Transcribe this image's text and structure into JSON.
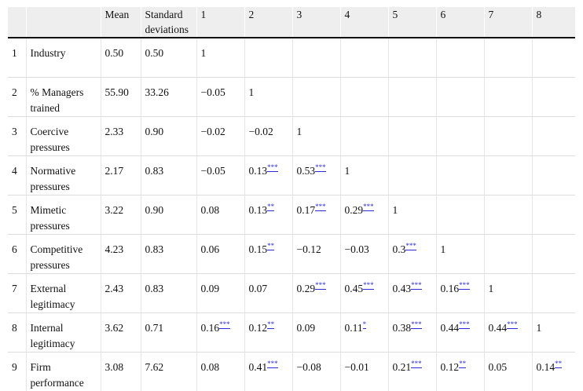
{
  "header": {
    "cols": [
      "",
      "",
      "Mean",
      "Standard deviations",
      "1",
      "2",
      "3",
      "4",
      "5",
      "6",
      "7",
      "8"
    ]
  },
  "rows": [
    {
      "num": "1",
      "label": "Industry",
      "mean": "0.50",
      "sd": "0.50",
      "cells": [
        {
          "v": "1",
          "s": ""
        },
        {
          "v": "",
          "s": ""
        },
        {
          "v": "",
          "s": ""
        },
        {
          "v": "",
          "s": ""
        },
        {
          "v": "",
          "s": ""
        },
        {
          "v": "",
          "s": ""
        },
        {
          "v": "",
          "s": ""
        },
        {
          "v": "",
          "s": ""
        }
      ]
    },
    {
      "num": "2",
      "label": "% Managers trained",
      "mean": "55.90",
      "sd": "33.26",
      "cells": [
        {
          "v": "−0.05",
          "s": ""
        },
        {
          "v": "1",
          "s": ""
        },
        {
          "v": "",
          "s": ""
        },
        {
          "v": "",
          "s": ""
        },
        {
          "v": "",
          "s": ""
        },
        {
          "v": "",
          "s": ""
        },
        {
          "v": "",
          "s": ""
        },
        {
          "v": "",
          "s": ""
        }
      ]
    },
    {
      "num": "3",
      "label": "Coercive pressures",
      "mean": "2.33",
      "sd": "0.90",
      "cells": [
        {
          "v": "−0.02",
          "s": ""
        },
        {
          "v": "−0.02",
          "s": ""
        },
        {
          "v": "1",
          "s": ""
        },
        {
          "v": "",
          "s": ""
        },
        {
          "v": "",
          "s": ""
        },
        {
          "v": "",
          "s": ""
        },
        {
          "v": "",
          "s": ""
        },
        {
          "v": "",
          "s": ""
        }
      ]
    },
    {
      "num": "4",
      "label": "Normative pressures",
      "mean": "2.17",
      "sd": "0.83",
      "cells": [
        {
          "v": "−0.05",
          "s": ""
        },
        {
          "v": "0.13",
          "s": "***"
        },
        {
          "v": "0.53",
          "s": "***"
        },
        {
          "v": "1",
          "s": ""
        },
        {
          "v": "",
          "s": ""
        },
        {
          "v": "",
          "s": ""
        },
        {
          "v": "",
          "s": ""
        },
        {
          "v": "",
          "s": ""
        }
      ]
    },
    {
      "num": "5",
      "label": "Mimetic pressures",
      "mean": "3.22",
      "sd": "0.90",
      "cells": [
        {
          "v": "0.08",
          "s": ""
        },
        {
          "v": "0.13",
          "s": "**"
        },
        {
          "v": "0.17",
          "s": "***"
        },
        {
          "v": "0.29",
          "s": "***"
        },
        {
          "v": "1",
          "s": ""
        },
        {
          "v": "",
          "s": ""
        },
        {
          "v": "",
          "s": ""
        },
        {
          "v": "",
          "s": ""
        }
      ]
    },
    {
      "num": "6",
      "label": "Competitive pressures",
      "mean": "4.23",
      "sd": "0.83",
      "cells": [
        {
          "v": "0.06",
          "s": ""
        },
        {
          "v": "0.15",
          "s": "**"
        },
        {
          "v": "−0.12",
          "s": ""
        },
        {
          "v": "−0.03",
          "s": ""
        },
        {
          "v": "0.3",
          "s": "***"
        },
        {
          "v": "1",
          "s": ""
        },
        {
          "v": "",
          "s": ""
        },
        {
          "v": "",
          "s": ""
        }
      ]
    },
    {
      "num": "7",
      "label": "External legitimacy",
      "mean": "2.43",
      "sd": "0.83",
      "cells": [
        {
          "v": "0.09",
          "s": ""
        },
        {
          "v": "0.07",
          "s": ""
        },
        {
          "v": "0.29",
          "s": "***"
        },
        {
          "v": "0.45",
          "s": "***"
        },
        {
          "v": "0.43",
          "s": "***"
        },
        {
          "v": "0.16",
          "s": "***"
        },
        {
          "v": "1",
          "s": ""
        },
        {
          "v": "",
          "s": ""
        }
      ]
    },
    {
      "num": "8",
      "label": "Internal legitimacy",
      "mean": "3.62",
      "sd": "0.71",
      "cells": [
        {
          "v": "0.16",
          "s": "***"
        },
        {
          "v": "0.12",
          "s": "**"
        },
        {
          "v": "0.09",
          "s": ""
        },
        {
          "v": "0.11",
          "s": "*"
        },
        {
          "v": "0.38",
          "s": "***"
        },
        {
          "v": "0.44",
          "s": "***"
        },
        {
          "v": "0.44",
          "s": "***"
        },
        {
          "v": "1",
          "s": ""
        }
      ]
    },
    {
      "num": "9",
      "label": "Firm performance",
      "mean": "3.08",
      "sd": "7.62",
      "cells": [
        {
          "v": "0.08",
          "s": ""
        },
        {
          "v": "0.41",
          "s": "***"
        },
        {
          "v": "−0.08",
          "s": ""
        },
        {
          "v": "−0.01",
          "s": ""
        },
        {
          "v": "0.21",
          "s": "***"
        },
        {
          "v": "0.12",
          "s": "**"
        },
        {
          "v": "0.05",
          "s": ""
        },
        {
          "v": "0.14",
          "s": "**"
        }
      ]
    }
  ]
}
